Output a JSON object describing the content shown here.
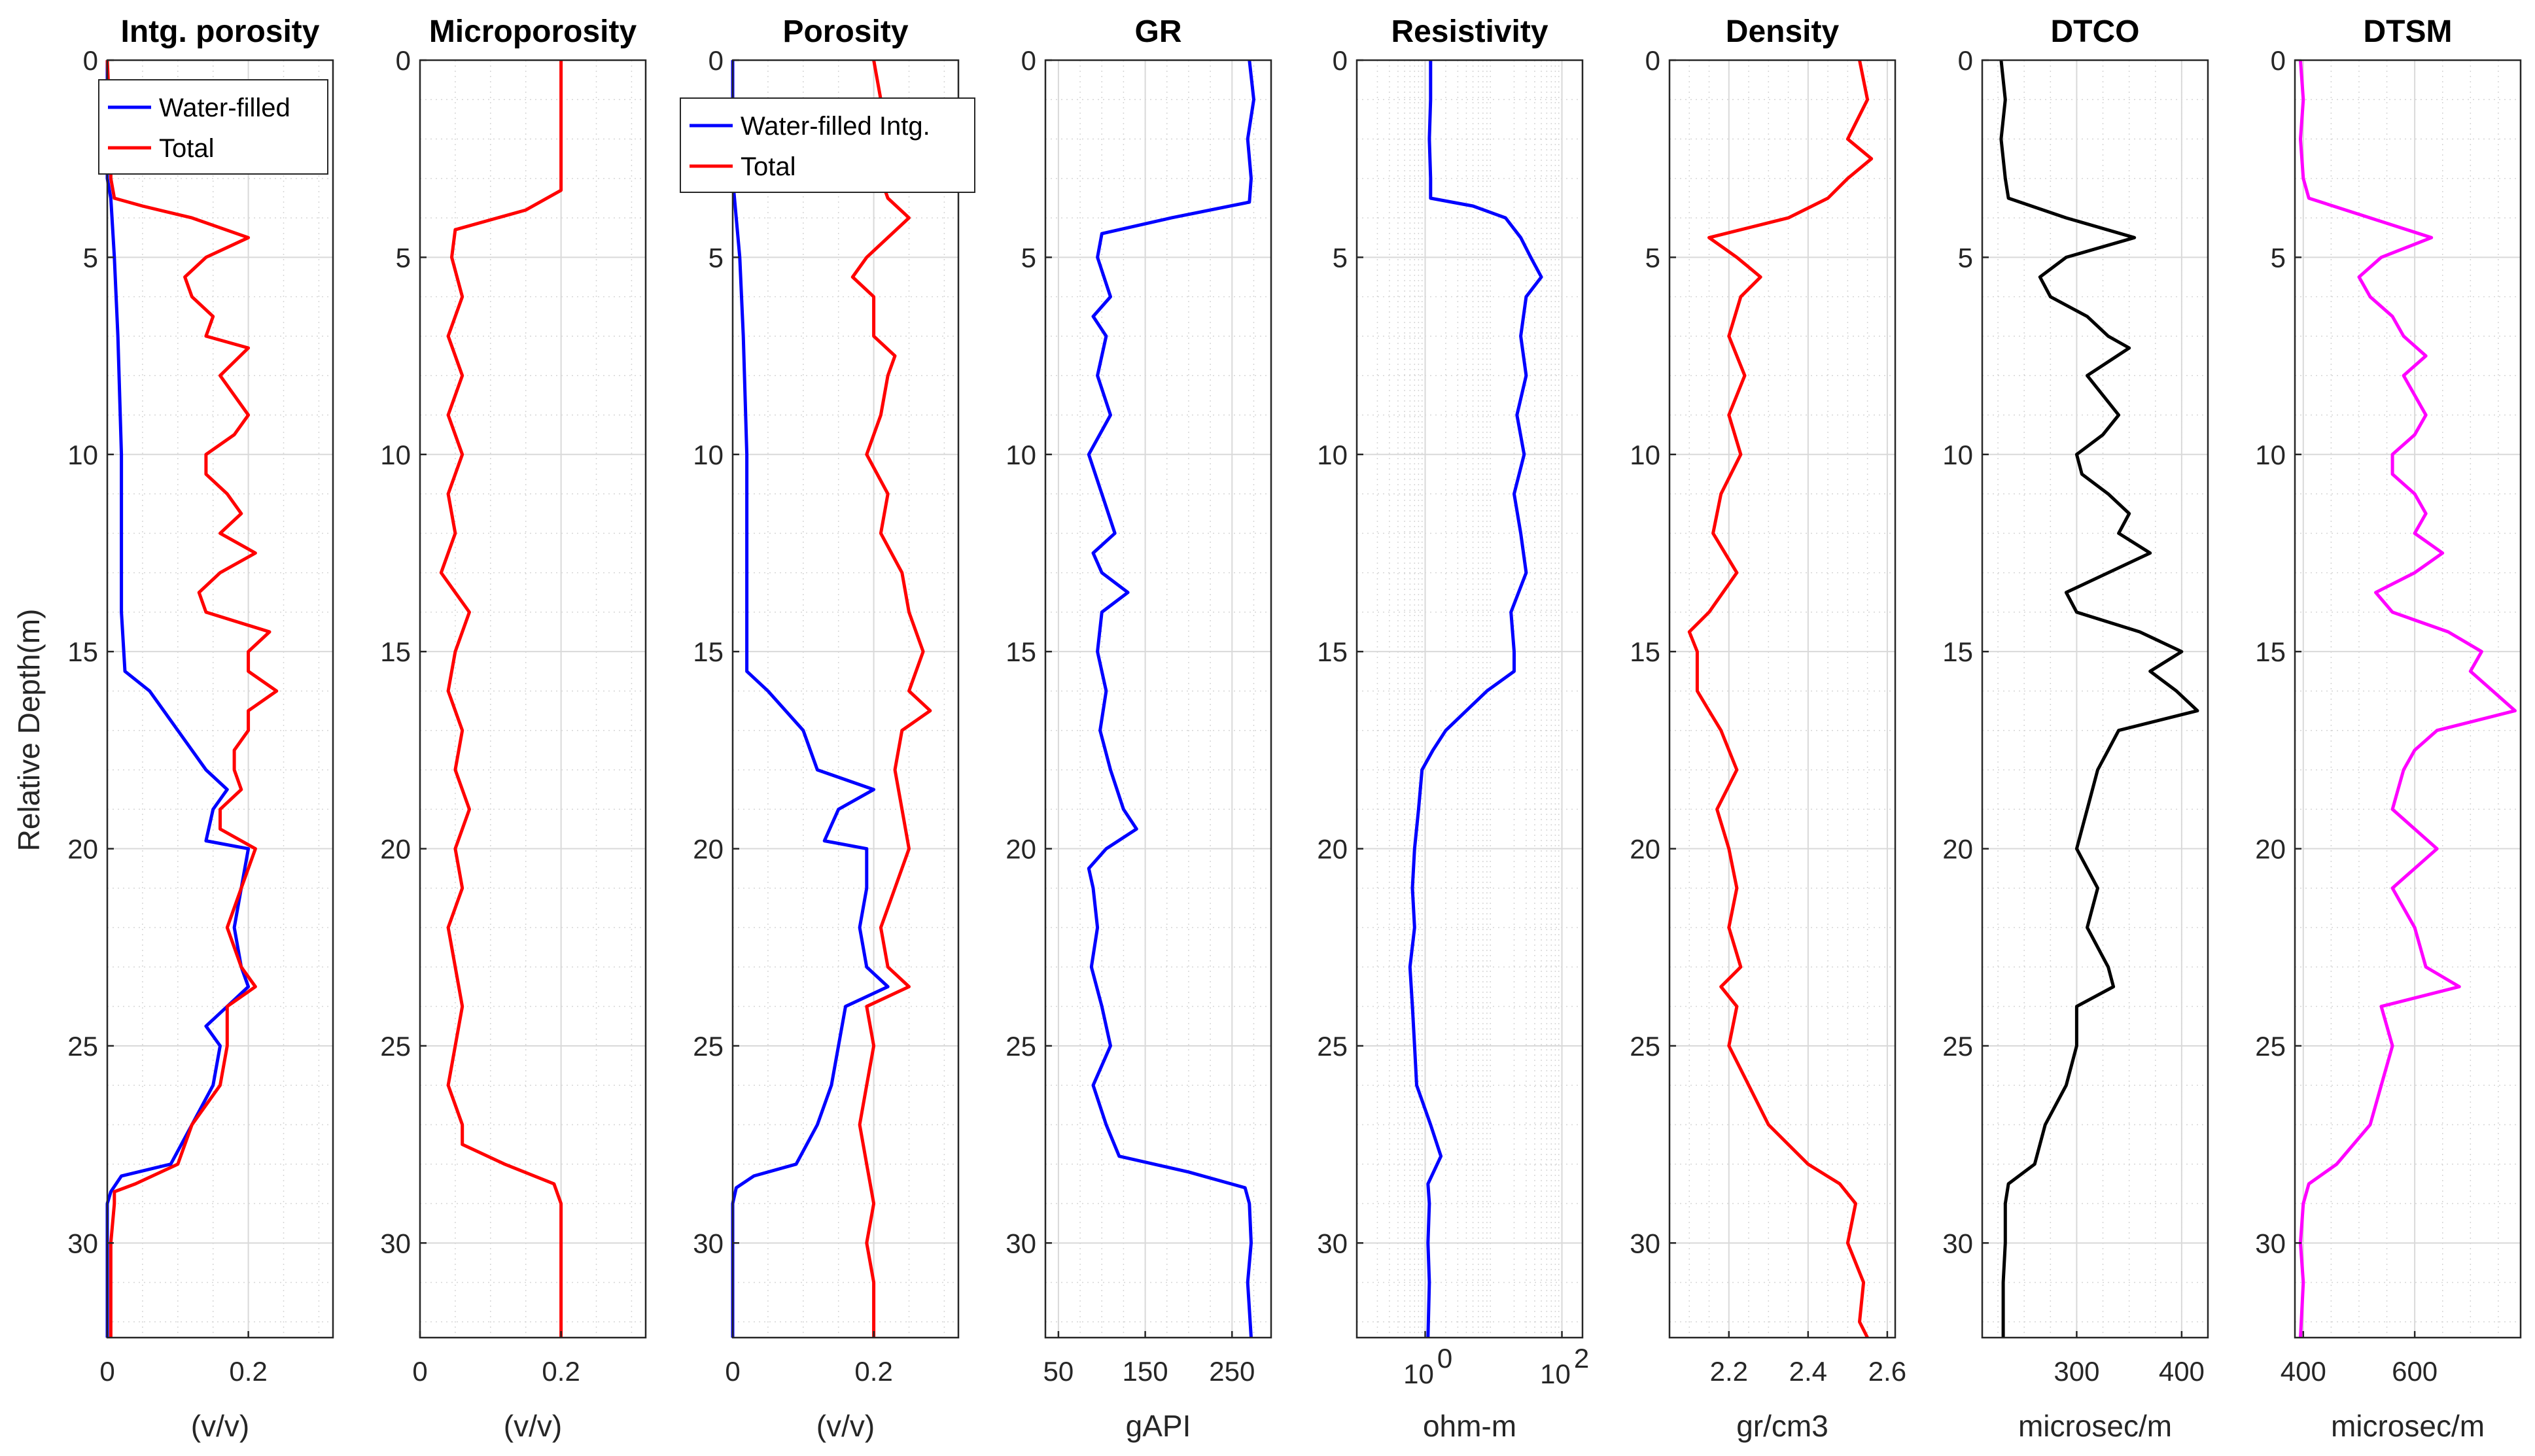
{
  "figure": {
    "ylabel": "Relative Depth(m)",
    "depth_range": [
      0,
      32.4
    ],
    "depth_ticks": [
      0,
      5,
      10,
      15,
      20,
      25,
      30
    ],
    "depth_tick_labels": [
      "0",
      "5",
      "10",
      "15",
      "20",
      "25",
      "30"
    ]
  },
  "chart_data": [
    {
      "type": "line",
      "title": "Intg. porosity",
      "xlabel": "(v/v)",
      "xscale": "linear",
      "xlim": [
        0,
        0.32
      ],
      "xticks": [
        0,
        0.2
      ],
      "xtick_labels": [
        "0",
        "0.2"
      ],
      "legend": {
        "position": "top-right",
        "entries": [
          "Water-filled",
          "Total"
        ]
      },
      "series": [
        {
          "name": "Water-filled",
          "color": "#0000ff",
          "depth": [
            0,
            3,
            3.5,
            5,
            7,
            10,
            12,
            14,
            15.5,
            16,
            17,
            18,
            18.5,
            19,
            19.8,
            20,
            21,
            22,
            23,
            23.5,
            24,
            24.5,
            25,
            26,
            27,
            28,
            28.3,
            28.7,
            29,
            32.4
          ],
          "values": [
            0,
            0,
            0.005,
            0.01,
            0.015,
            0.02,
            0.02,
            0.02,
            0.025,
            0.06,
            0.1,
            0.14,
            0.17,
            0.15,
            0.14,
            0.2,
            0.19,
            0.18,
            0.19,
            0.2,
            0.17,
            0.14,
            0.16,
            0.15,
            0.12,
            0.09,
            0.02,
            0.005,
            0,
            0
          ]
        },
        {
          "name": "Total",
          "color": "#ff0000",
          "depth": [
            0,
            2,
            3,
            3.5,
            3.7,
            4,
            4.5,
            5,
            5.5,
            6,
            6.5,
            7,
            7.3,
            8,
            9,
            9.5,
            10,
            10.5,
            11,
            11.5,
            12,
            12.5,
            13,
            13.5,
            14,
            14.5,
            15,
            15.5,
            16,
            16.5,
            17,
            17.5,
            18,
            18.5,
            19,
            19.5,
            20,
            21,
            22,
            23,
            23.5,
            24,
            25,
            26,
            27,
            28,
            28.5,
            28.7,
            29,
            30,
            31,
            32.4
          ],
          "values": [
            0,
            0.005,
            0.005,
            0.01,
            0.05,
            0.12,
            0.2,
            0.14,
            0.11,
            0.12,
            0.15,
            0.14,
            0.2,
            0.16,
            0.2,
            0.18,
            0.14,
            0.14,
            0.17,
            0.19,
            0.16,
            0.21,
            0.16,
            0.13,
            0.14,
            0.23,
            0.2,
            0.2,
            0.24,
            0.2,
            0.2,
            0.18,
            0.18,
            0.19,
            0.16,
            0.16,
            0.21,
            0.19,
            0.17,
            0.19,
            0.21,
            0.17,
            0.17,
            0.16,
            0.12,
            0.1,
            0.04,
            0.01,
            0.01,
            0.005,
            0.005,
            0.005
          ]
        }
      ]
    },
    {
      "type": "line",
      "title": "Microporosity",
      "xlabel": "(v/v)",
      "xscale": "linear",
      "xlim": [
        0,
        0.32
      ],
      "xticks": [
        0,
        0.2
      ],
      "xtick_labels": [
        "0",
        "0.2"
      ],
      "series": [
        {
          "name": "Microporosity",
          "color": "#ff0000",
          "depth": [
            0,
            3.3,
            3.8,
            4.3,
            5,
            6,
            7,
            8,
            9,
            10,
            11,
            12,
            13,
            14,
            15,
            16,
            17,
            18,
            19,
            20,
            21,
            22,
            23,
            24,
            25,
            26,
            27,
            27.5,
            28,
            28.5,
            29,
            32.4
          ],
          "values": [
            0.2,
            0.2,
            0.15,
            0.05,
            0.045,
            0.06,
            0.04,
            0.06,
            0.04,
            0.06,
            0.04,
            0.05,
            0.03,
            0.07,
            0.05,
            0.04,
            0.06,
            0.05,
            0.07,
            0.05,
            0.06,
            0.04,
            0.05,
            0.06,
            0.05,
            0.04,
            0.06,
            0.06,
            0.12,
            0.19,
            0.2,
            0.2
          ]
        }
      ]
    },
    {
      "type": "line",
      "title": "Porosity",
      "xlabel": "(v/v)",
      "xscale": "linear",
      "xlim": [
        0,
        0.32
      ],
      "xticks": [
        0,
        0.2
      ],
      "xtick_labels": [
        "0",
        "0.2"
      ],
      "legend": {
        "position": "top-left",
        "entries": [
          "Water-filled Intg.",
          "Total"
        ]
      },
      "series": [
        {
          "name": "Water-filled Intg.",
          "color": "#0000ff",
          "depth": [
            0,
            3,
            4,
            5,
            7,
            10,
            12,
            14,
            15.5,
            16,
            17,
            18,
            18.5,
            19,
            19.8,
            20,
            21,
            22,
            23,
            23.5,
            24,
            25,
            26,
            27,
            28,
            28.3,
            28.6,
            29,
            32.4
          ],
          "values": [
            0,
            0,
            0.005,
            0.01,
            0.015,
            0.02,
            0.02,
            0.02,
            0.02,
            0.05,
            0.1,
            0.12,
            0.2,
            0.15,
            0.13,
            0.19,
            0.19,
            0.18,
            0.19,
            0.22,
            0.16,
            0.15,
            0.14,
            0.12,
            0.09,
            0.03,
            0.005,
            0,
            0
          ]
        },
        {
          "name": "Total",
          "color": "#ff0000",
          "depth": [
            0,
            1,
            2,
            3,
            3.5,
            4,
            5,
            5.5,
            6,
            7,
            7.5,
            8,
            9,
            10,
            11,
            12,
            13,
            14,
            15,
            16,
            16.5,
            17,
            18,
            19,
            20,
            21,
            22,
            23,
            23.5,
            24,
            25,
            26,
            27,
            28,
            29,
            30,
            31,
            32.4
          ],
          "values": [
            0.2,
            0.21,
            0.19,
            0.21,
            0.22,
            0.25,
            0.19,
            0.17,
            0.2,
            0.2,
            0.23,
            0.22,
            0.21,
            0.19,
            0.22,
            0.21,
            0.24,
            0.25,
            0.27,
            0.25,
            0.28,
            0.24,
            0.23,
            0.24,
            0.25,
            0.23,
            0.21,
            0.22,
            0.25,
            0.19,
            0.2,
            0.19,
            0.18,
            0.19,
            0.2,
            0.19,
            0.2,
            0.2
          ]
        }
      ]
    },
    {
      "type": "line",
      "title": "GR",
      "xlabel": "gAPI",
      "xscale": "linear",
      "xlim": [
        35,
        295
      ],
      "xticks": [
        50,
        150,
        250
      ],
      "xtick_labels": [
        "50",
        "150",
        "250"
      ],
      "series": [
        {
          "name": "GR",
          "color": "#0000ff",
          "depth": [
            0,
            1,
            2,
            3,
            3.6,
            4,
            4.4,
            5,
            6,
            6.5,
            7,
            8,
            9,
            10,
            11,
            12,
            12.5,
            13,
            13.5,
            14,
            15,
            16,
            17,
            18,
            19,
            19.5,
            20,
            20.5,
            21,
            22,
            23,
            24,
            25,
            26,
            27,
            27.8,
            28.2,
            28.6,
            29,
            30,
            31,
            32.4
          ],
          "values": [
            270,
            275,
            268,
            272,
            270,
            180,
            100,
            95,
            110,
            90,
            105,
            95,
            110,
            85,
            100,
            115,
            90,
            100,
            130,
            100,
            95,
            105,
            98,
            110,
            125,
            140,
            105,
            85,
            90,
            95,
            88,
            100,
            110,
            90,
            105,
            120,
            200,
            265,
            270,
            272,
            268,
            272
          ]
        }
      ]
    },
    {
      "type": "line",
      "title": "Resistivity",
      "xlabel": "ohm-m",
      "xscale": "log",
      "xlim": [
        0.1,
        200
      ],
      "xticks": [
        1,
        100
      ],
      "xtick_labels": [
        "10",
        "10"
      ],
      "xtick_exponents": [
        "0",
        "2"
      ],
      "series": [
        {
          "name": "Resistivity",
          "color": "#0000ff",
          "depth": [
            0,
            1,
            2,
            3,
            3.5,
            3.7,
            4,
            4.5,
            5,
            5.5,
            6,
            7,
            8,
            9,
            10,
            11,
            12,
            13,
            14,
            15,
            15.5,
            16,
            16.5,
            17,
            17.5,
            18,
            19,
            20,
            21,
            22,
            23,
            24,
            25,
            26,
            27,
            27.8,
            28.5,
            29,
            30,
            31,
            32.4
          ],
          "values": [
            1.2,
            1.2,
            1.15,
            1.2,
            1.2,
            5,
            15,
            25,
            35,
            50,
            30,
            25,
            30,
            22,
            28,
            20,
            25,
            30,
            18,
            20,
            20,
            8,
            4,
            2,
            1.3,
            0.9,
            0.8,
            0.7,
            0.65,
            0.7,
            0.6,
            0.65,
            0.7,
            0.75,
            1.2,
            1.7,
            1.1,
            1.15,
            1.1,
            1.15,
            1.1
          ]
        }
      ]
    },
    {
      "type": "line",
      "title": "Density",
      "xlabel": "gr/cm3",
      "xscale": "linear",
      "xlim": [
        2.05,
        2.62
      ],
      "xticks": [
        2.2,
        2.4,
        2.6
      ],
      "xtick_labels": [
        "2.2",
        "2.4",
        "2.6"
      ],
      "series": [
        {
          "name": "Density",
          "color": "#ff0000",
          "depth": [
            0,
            1,
            2,
            2.5,
            3,
            3.5,
            4,
            4.5,
            5,
            5.5,
            6,
            7,
            8,
            9,
            10,
            11,
            12,
            13,
            14,
            14.5,
            15,
            16,
            16.5,
            17,
            18,
            19,
            20,
            21,
            22,
            23,
            23.5,
            24,
            25,
            26,
            27,
            28,
            28.5,
            29,
            30,
            31,
            32,
            32.4
          ],
          "values": [
            2.53,
            2.55,
            2.5,
            2.56,
            2.5,
            2.45,
            2.35,
            2.15,
            2.22,
            2.28,
            2.23,
            2.2,
            2.24,
            2.2,
            2.23,
            2.18,
            2.16,
            2.22,
            2.15,
            2.1,
            2.12,
            2.12,
            2.15,
            2.18,
            2.22,
            2.17,
            2.2,
            2.22,
            2.2,
            2.23,
            2.18,
            2.22,
            2.2,
            2.25,
            2.3,
            2.4,
            2.48,
            2.52,
            2.5,
            2.54,
            2.53,
            2.55
          ]
        }
      ]
    },
    {
      "type": "line",
      "title": "DTCO",
      "xlabel": "microsec/m",
      "xscale": "linear",
      "xlim": [
        210,
        425
      ],
      "xticks": [
        300,
        400
      ],
      "xtick_labels": [
        "300",
        "400"
      ],
      "series": [
        {
          "name": "DTCO",
          "color": "#000000",
          "depth": [
            0,
            1,
            2,
            3,
            3.5,
            4,
            4.5,
            5,
            5.5,
            6,
            6.5,
            7,
            7.3,
            8,
            9,
            9.5,
            10,
            10.5,
            11,
            11.5,
            12,
            12.5,
            13,
            13.5,
            14,
            14.5,
            15,
            15.5,
            16,
            16.5,
            17,
            17.5,
            18,
            19,
            20,
            21,
            22,
            23,
            23.5,
            24,
            25,
            26,
            27,
            28,
            28.5,
            29,
            30,
            31,
            32.4
          ],
          "values": [
            228,
            232,
            228,
            232,
            235,
            290,
            355,
            290,
            265,
            275,
            310,
            330,
            350,
            310,
            340,
            325,
            300,
            305,
            330,
            350,
            340,
            370,
            330,
            290,
            300,
            360,
            400,
            370,
            395,
            415,
            340,
            330,
            320,
            310,
            300,
            320,
            310,
            330,
            335,
            300,
            300,
            290,
            270,
            260,
            235,
            232,
            232,
            230,
            230
          ]
        }
      ]
    },
    {
      "type": "line",
      "title": "DTSM",
      "xlabel": "microsec/m",
      "xscale": "linear",
      "xlim": [
        385,
        790
      ],
      "xticks": [
        400,
        600
      ],
      "xtick_labels": [
        "400",
        "600"
      ],
      "series": [
        {
          "name": "DTSM",
          "color": "#ff00ff",
          "depth": [
            0,
            1,
            2,
            3,
            3.5,
            4,
            4.5,
            5,
            5.5,
            6,
            6.5,
            7,
            7.5,
            8,
            9,
            9.5,
            10,
            10.5,
            11,
            11.5,
            12,
            12.5,
            13,
            13.5,
            14,
            14.5,
            15,
            15.5,
            16,
            16.5,
            17,
            17.5,
            18,
            19,
            20,
            21,
            22,
            23,
            23.5,
            24,
            25,
            26,
            27,
            28,
            28.5,
            29,
            30,
            31,
            32.4
          ],
          "values": [
            395,
            400,
            395,
            400,
            410,
            520,
            630,
            540,
            500,
            520,
            560,
            580,
            620,
            580,
            620,
            600,
            560,
            560,
            600,
            620,
            600,
            650,
            600,
            530,
            560,
            660,
            720,
            700,
            740,
            780,
            640,
            600,
            580,
            560,
            640,
            560,
            600,
            620,
            680,
            540,
            560,
            540,
            520,
            460,
            410,
            400,
            395,
            400,
            395
          ]
        }
      ]
    }
  ]
}
